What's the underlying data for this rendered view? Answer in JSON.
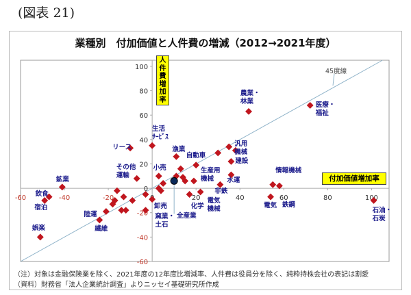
{
  "figure_label": "(図表 21)",
  "notes": {
    "note": "（注）対象は金融保険業を除く、2021年度の12年度比増減率、人件費は役員分を除く、純粋持株会社の表記は割愛",
    "source": "（資料）財務省「法人企業統計調査」よりニッセイ基礎研究所作成"
  },
  "chart_data": {
    "type": "scatter",
    "title": "業種別　付加価値と人件費の増減（2012→2021年度）",
    "xlabel": "付加価値増加率",
    "ylabel": "人件費増加率",
    "xlim": [
      -60,
      108
    ],
    "ylim": [
      -60,
      105
    ],
    "xticks": [
      "-60",
      "-40",
      "-20",
      "0",
      "20",
      "40",
      "60",
      "80",
      "100"
    ],
    "yticks": [
      "-60",
      "-40",
      "-20",
      "0",
      "20",
      "40",
      "60",
      "80",
      "100"
    ],
    "reference_line": {
      "label": "45度線",
      "slope": 1
    },
    "colors": {
      "point": "#c0161e",
      "highlight": "#0b2a5a",
      "line": "#8fb3c9",
      "label": "#1c1c8c"
    },
    "points": [
      {
        "label": "リース",
        "x": -10,
        "y": 33
      },
      {
        "label": "生活\nｻｰﾋﾞｽ",
        "x": 0,
        "y": 35
      },
      {
        "label": "漁業",
        "x": 11,
        "y": 26
      },
      {
        "label": "自動車",
        "x": 13,
        "y": 16
      },
      {
        "label": "",
        "x": 20,
        "y": 19
      },
      {
        "label": "小売",
        "x": 3,
        "y": 10
      },
      {
        "label": "その他\n運輸",
        "x": -7,
        "y": 8
      },
      {
        "label": "鉱業",
        "x": -41,
        "y": 1
      },
      {
        "label": "飲食",
        "x": -47,
        "y": -7
      },
      {
        "label": "宿泊",
        "x": -49,
        "y": -10
      },
      {
        "label": "娯楽",
        "x": -51,
        "y": -40
      },
      {
        "label": "",
        "x": -16,
        "y": -2
      },
      {
        "label": "",
        "x": -17,
        "y": -10
      },
      {
        "label": "",
        "x": -13,
        "y": -7
      },
      {
        "label": "",
        "x": -9,
        "y": -10
      },
      {
        "label": "陸運",
        "x": -18,
        "y": -13
      },
      {
        "label": "",
        "x": -21,
        "y": -19
      },
      {
        "label": "",
        "x": -14,
        "y": -18
      },
      {
        "label": "",
        "x": -12,
        "y": -18
      },
      {
        "label": "繊維",
        "x": -24,
        "y": -26
      },
      {
        "label": "窯業・\n土石",
        "x": -3,
        "y": -18
      },
      {
        "label": "",
        "x": -3,
        "y": -5
      },
      {
        "label": "",
        "x": 0,
        "y": -9
      },
      {
        "label": "",
        "x": 3,
        "y": 0
      },
      {
        "label": "卸売",
        "x": 4,
        "y": -2
      },
      {
        "label": "",
        "x": 5,
        "y": 4
      },
      {
        "label": "",
        "x": 11,
        "y": 10
      },
      {
        "label": "",
        "x": 14,
        "y": 9
      },
      {
        "label": "",
        "x": 15,
        "y": 6
      },
      {
        "label": "化学",
        "x": 17,
        "y": -5
      },
      {
        "label": "生産用\n機械",
        "x": 19,
        "y": 6
      },
      {
        "label": "電気\n機械",
        "x": 22,
        "y": -3
      },
      {
        "label": "非鉄",
        "x": 31,
        "y": 3
      },
      {
        "label": "",
        "x": 30,
        "y": 29
      },
      {
        "label": "汎用\n機械",
        "x": 35,
        "y": 34
      },
      {
        "label": "",
        "x": 38,
        "y": 31
      },
      {
        "label": "建設",
        "x": 36,
        "y": 22
      },
      {
        "label": "水運",
        "x": 36,
        "y": 11
      },
      {
        "label": "農業・\n林業",
        "x": 44,
        "y": 63
      },
      {
        "label": "医療・\n福祉",
        "x": 72,
        "y": 68
      },
      {
        "label": "情報機械",
        "x": 55,
        "y": 3
      },
      {
        "label": "鉄鋼",
        "x": 58,
        "y": 2
      },
      {
        "label": "電気",
        "x": 54,
        "y": -7
      },
      {
        "label": "石油・\n石炭",
        "x": 101,
        "y": -10
      },
      {
        "label": "全産業",
        "x": 10,
        "y": 6,
        "highlight": true
      }
    ]
  }
}
